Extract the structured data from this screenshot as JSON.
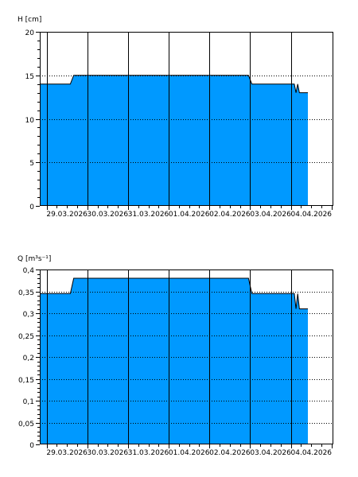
{
  "colors": {
    "fill": "#0099ff",
    "stroke": "#000000",
    "grid": "#000000",
    "background": "#ffffff"
  },
  "chart_data": [
    {
      "type": "area",
      "ylabel": "H [cm]",
      "ylim": [
        0,
        20
      ],
      "yticks": [
        0,
        5,
        10,
        15,
        20
      ],
      "ytick_labels": [
        "0",
        "5",
        "10",
        "15",
        "20"
      ],
      "xlim": [
        "2026-03-28 20:00",
        "2026-04-05 01:00"
      ],
      "x_ticks": [
        "2026-03-29",
        "2026-03-30",
        "2026-03-31",
        "2026-04-01",
        "2026-04-02",
        "2026-04-03",
        "2026-04-04"
      ],
      "x_tick_labels": [
        "29.03.2026",
        "30.03.2026",
        "31.03.2026",
        "01.04.2026",
        "02.04.2026",
        "03.04.2026",
        "04.04.2026"
      ],
      "grid": "vertical solid at midnights, horizontal dotted at y ticks",
      "series": [
        {
          "x": [
            "2026-03-28 20:00",
            "2026-03-29 14:00",
            "2026-03-29 16:00",
            "2026-04-02 23:00",
            "2026-04-03 01:00",
            "2026-04-04 02:00",
            "2026-04-04 03:00",
            "2026-04-04 04:00",
            "2026-04-04 05:00",
            "2026-04-04 06:00",
            "2026-04-04 10:00"
          ],
          "y": [
            14,
            14,
            15,
            15,
            14,
            14,
            13,
            14,
            13,
            13,
            13
          ]
        }
      ]
    },
    {
      "type": "area",
      "ylabel": "Q [m³s⁻¹]",
      "ylim": [
        0,
        0.4
      ],
      "yticks": [
        0,
        0.05,
        0.1,
        0.15,
        0.2,
        0.25,
        0.3,
        0.35,
        0.4
      ],
      "ytick_labels": [
        "0",
        "0,05",
        "0,1",
        "0,15",
        "0,2",
        "0,25",
        "0,3",
        "0,35",
        "0,4"
      ],
      "xlim": [
        "2026-03-28 20:00",
        "2026-04-05 01:00"
      ],
      "x_ticks": [
        "2026-03-29",
        "2026-03-30",
        "2026-03-31",
        "2026-04-01",
        "2026-04-02",
        "2026-04-03",
        "2026-04-04"
      ],
      "x_tick_labels": [
        "29.03.2026",
        "30.03.2026",
        "31.03.2026",
        "01.04.2026",
        "02.04.2026",
        "03.04.2026",
        "04.04.2026"
      ],
      "grid": "vertical solid at midnights, horizontal dotted at y ticks",
      "series": [
        {
          "x": [
            "2026-03-28 20:00",
            "2026-03-29 14:00",
            "2026-03-29 16:00",
            "2026-04-02 23:00",
            "2026-04-03 01:00",
            "2026-04-04 02:00",
            "2026-04-04 03:00",
            "2026-04-04 04:00",
            "2026-04-04 05:00",
            "2026-04-04 06:00",
            "2026-04-04 10:00"
          ],
          "y": [
            0.345,
            0.345,
            0.38,
            0.38,
            0.345,
            0.345,
            0.31,
            0.345,
            0.31,
            0.31,
            0.31
          ]
        }
      ]
    }
  ]
}
